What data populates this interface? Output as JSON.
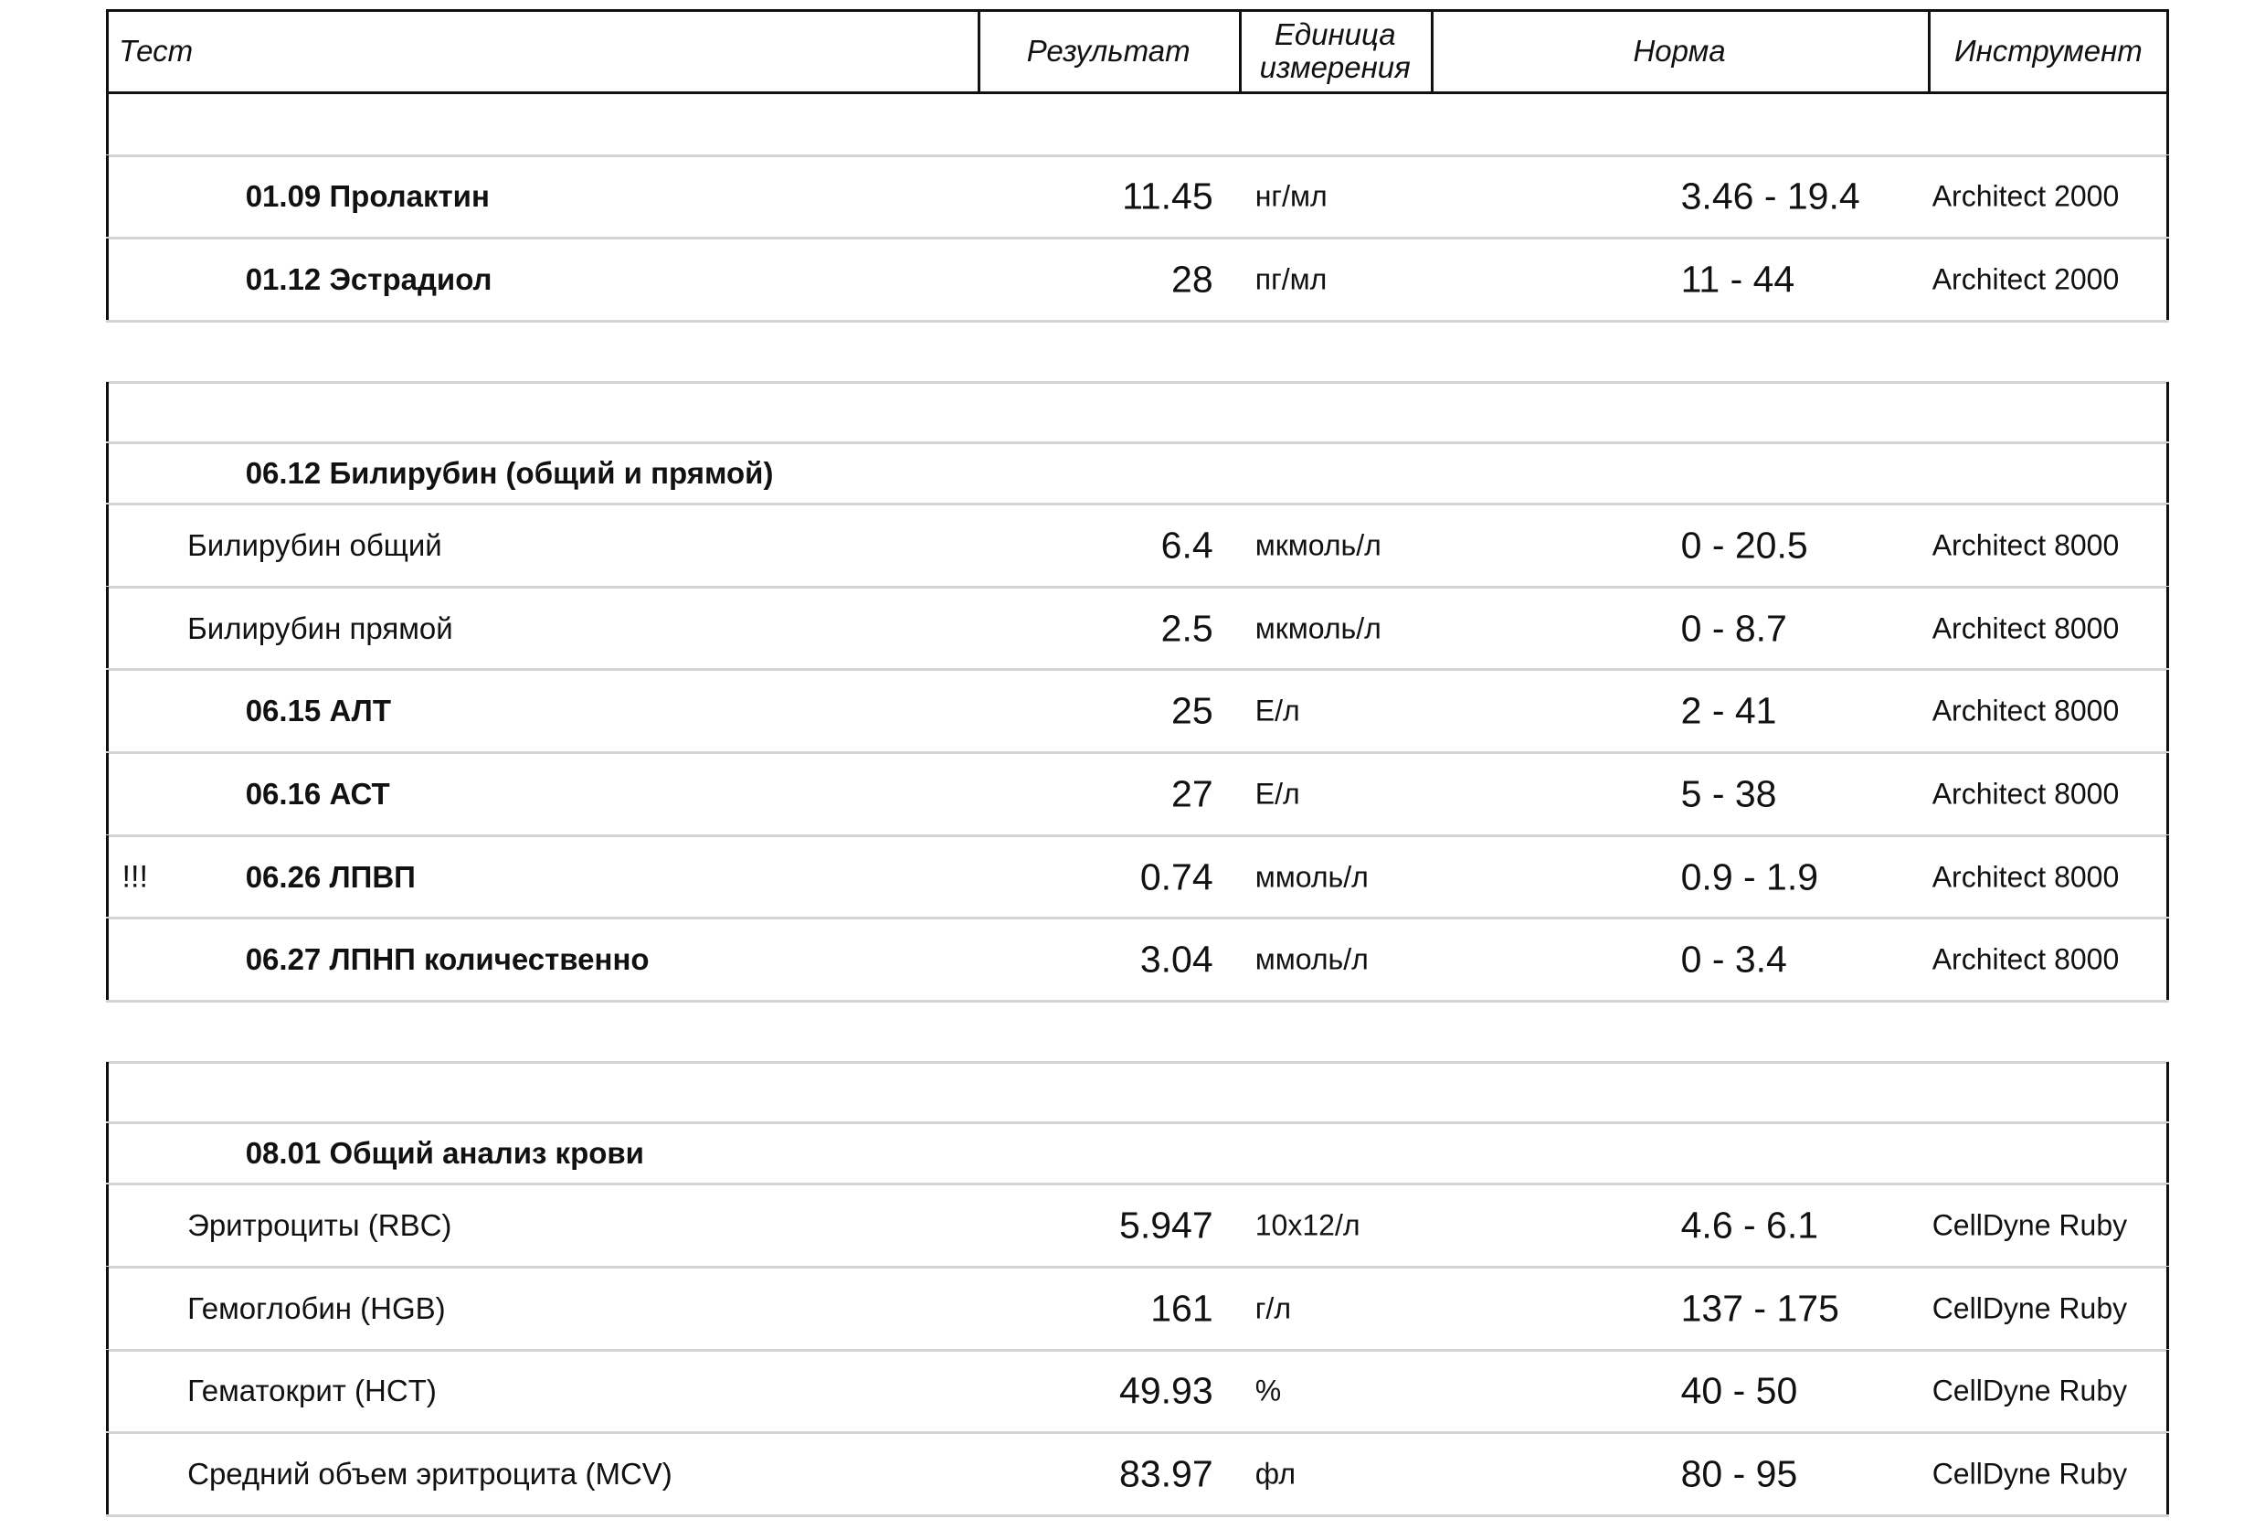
{
  "table": {
    "columns": [
      "Тест",
      "Результат",
      "Единица измерения",
      "Норма",
      "Инструмент"
    ],
    "sections": [
      {
        "items": [
          {
            "test": "01.09 Пролактин",
            "result": "11.45",
            "unit": "нг/мл",
            "norm": "3.46 - 19.4",
            "instrument": "Architect 2000"
          },
          {
            "test": "01.12 Эстрадиол",
            "result": "28",
            "unit": "пг/мл",
            "norm": "11 - 44",
            "instrument": "Architect 2000"
          }
        ]
      },
      {
        "items": [
          {
            "test": "06.12 Билирубин (общий и прямой)",
            "components": [
              {
                "test": "Билирубин общий",
                "result": "6.4",
                "unit": "мкмоль/л",
                "norm": "0 - 20.5",
                "instrument": "Architect 8000"
              },
              {
                "test": "Билирубин прямой",
                "result": "2.5",
                "unit": "мкмоль/л",
                "norm": "0 - 8.7",
                "instrument": "Architect 8000"
              }
            ]
          },
          {
            "test": "06.15 АЛТ",
            "result": "25",
            "unit": "Е/л",
            "norm": "2 - 41",
            "instrument": "Architect 8000"
          },
          {
            "test": "06.16 АСТ",
            "result": "27",
            "unit": "Е/л",
            "norm": "5 - 38",
            "instrument": "Architect 8000"
          },
          {
            "flag": "!!!",
            "test": "06.26 ЛПВП",
            "result": "0.74",
            "unit": "ммоль/л",
            "norm": "0.9 - 1.9",
            "instrument": "Architect 8000"
          },
          {
            "test": "06.27 ЛПНП количественно",
            "result": "3.04",
            "unit": "ммоль/л",
            "norm": "0 - 3.4",
            "instrument": "Architect 8000"
          }
        ]
      },
      {
        "items": [
          {
            "test": "08.01 Общий анализ крови",
            "components": [
              {
                "test": "Эритроциты (RBC)",
                "result": "5.947",
                "unit": "10x12/л",
                "norm": "4.6 - 6.1",
                "instrument": "CellDyne Ruby"
              },
              {
                "test": "Гемоглобин (HGB)",
                "result": "161",
                "unit": "г/л",
                "norm": "137 - 175",
                "instrument": "CellDyne Ruby"
              },
              {
                "test": "Гематокрит (HCT)",
                "result": "49.93",
                "unit": "%",
                "norm": "40 - 50",
                "instrument": "CellDyne Ruby"
              },
              {
                "test": "Средний объем эритроцита (MCV)",
                "result": "83.97",
                "unit": "фл",
                "norm": "80 - 95",
                "instrument": "CellDyne Ruby"
              }
            ]
          }
        ]
      }
    ]
  }
}
